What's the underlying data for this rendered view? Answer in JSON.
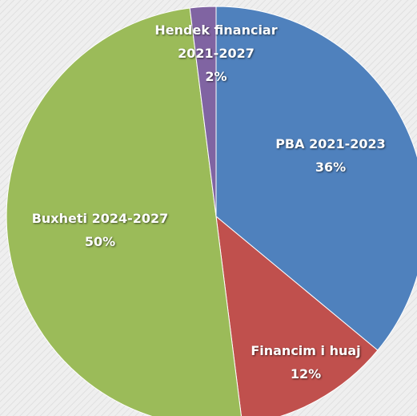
{
  "chart_data": {
    "type": "pie",
    "categories": [
      "PBA 2021-2023",
      "Financim i huaj",
      "Buxheti 2024-2027",
      "Hendek financiar 2021-2027"
    ],
    "values": [
      36,
      12,
      50,
      2
    ],
    "value_labels": [
      "36%",
      "12%",
      "50%",
      "2%"
    ],
    "colors": [
      "#4f81bd",
      "#c0504d",
      "#9bbb59",
      "#8064a2"
    ]
  }
}
